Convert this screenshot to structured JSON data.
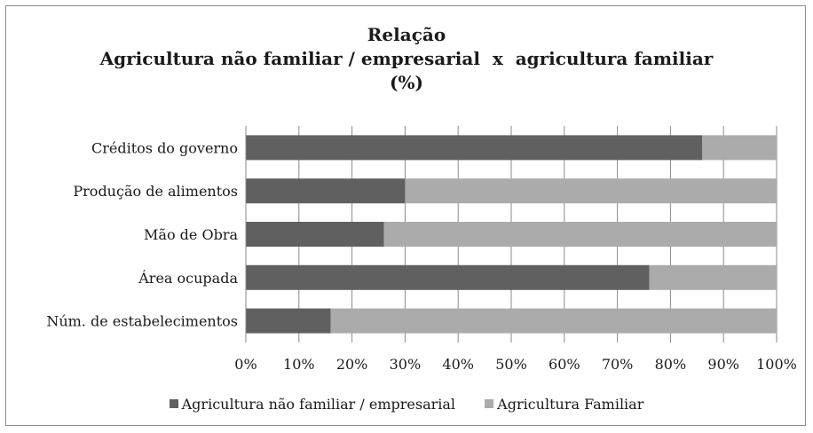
{
  "chart_data": {
    "type": "bar",
    "orientation": "horizontal",
    "stacked": "percent",
    "title_lines": [
      "Relação",
      "Agricultura não familiar / empresarial  x  agricultura familiar",
      "(%)"
    ],
    "categories": [
      "Créditos do governo",
      "Produção de alimentos",
      "Mão de Obra",
      "Área ocupada",
      "Núm. de estabelecimentos"
    ],
    "series": [
      {
        "name": "Agricultura não familiar / empresarial",
        "color": "#606060",
        "values": [
          86,
          30,
          26,
          76,
          16
        ]
      },
      {
        "name": "Agricultura Familiar",
        "color": "#ababab",
        "values": [
          14,
          70,
          74,
          24,
          84
        ]
      }
    ],
    "xticks": [
      "0%",
      "10%",
      "20%",
      "30%",
      "40%",
      "50%",
      "60%",
      "70%",
      "80%",
      "90%",
      "100%"
    ],
    "xlim": [
      0,
      100
    ],
    "grid": "vertical",
    "legend_position": "bottom"
  }
}
